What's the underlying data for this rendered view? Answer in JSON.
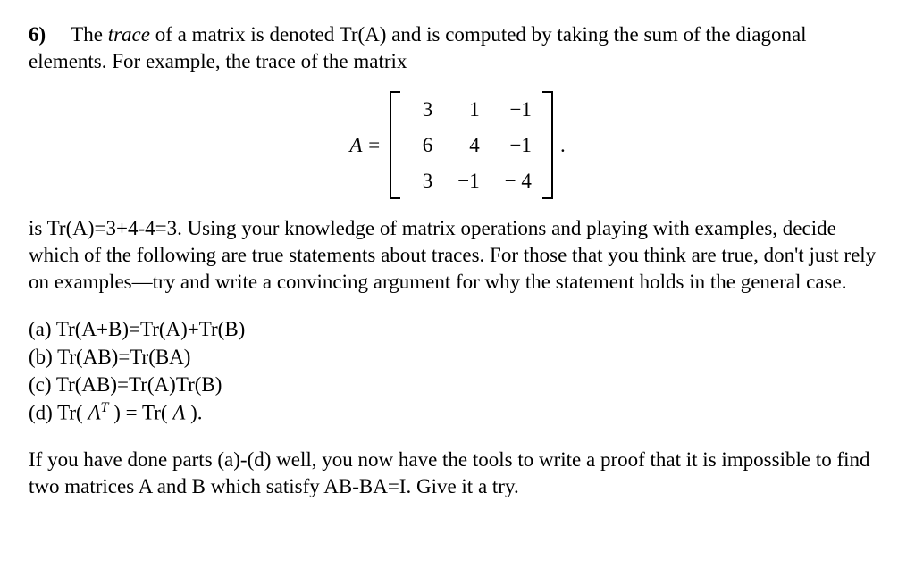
{
  "problem": {
    "number": "6)",
    "intro_part1": "The ",
    "intro_italic": "trace",
    "intro_part2": " of a matrix is denoted Tr(A) and is computed by taking the sum of the diagonal elements.  For example, the trace of the matrix"
  },
  "matrix": {
    "label": "A =",
    "rows": [
      [
        "3",
        "1",
        "−1"
      ],
      [
        "6",
        "4",
        "−1"
      ],
      [
        "3",
        "−1",
        "− 4"
      ]
    ],
    "trailing": "."
  },
  "body": {
    "after_matrix": "is Tr(A)=3+4-4=3.  Using your knowledge of matrix operations and playing with examples, decide which of the following are true statements about traces.  For those that you think are true, don't just rely on examples—try and write a convincing argument for why the statement holds in the general case."
  },
  "options": {
    "a": "(a) Tr(A+B)=Tr(A)+Tr(B)",
    "b": "(b) Tr(AB)=Tr(BA)",
    "c": "(c) Tr(AB)=Tr(A)Tr(B)",
    "d_prefix": "(d) Tr( ",
    "d_var1": "A",
    "d_sup": "T",
    "d_mid": " ) = Tr( ",
    "d_var2": "A",
    "d_suffix": " )."
  },
  "closing": "If you have done parts (a)-(d) well, you now have the tools to write a proof that it is impossible to find two matrices A and B which satisfy AB-BA=I.  Give it a try."
}
